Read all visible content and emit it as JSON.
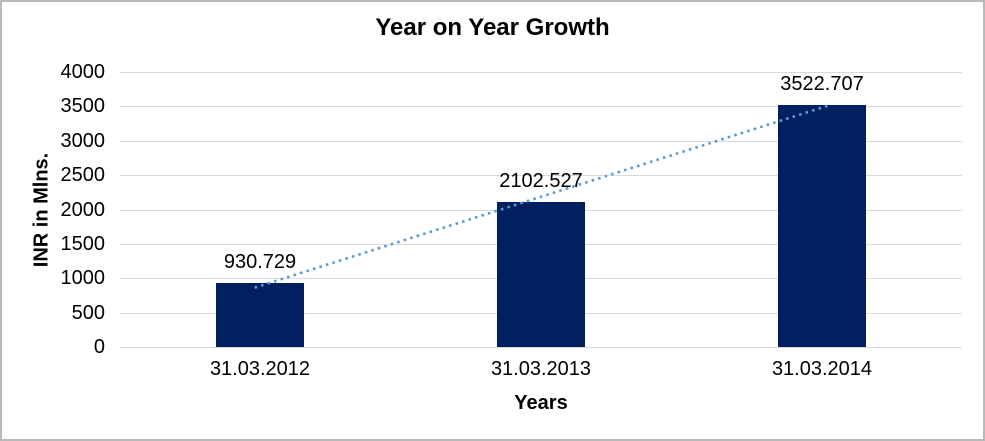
{
  "frame": {
    "background": "#ffffff",
    "border_color": "#b9b9b9"
  },
  "chart_data": {
    "type": "bar",
    "title": "Year on Year Growth",
    "xlabel": "Years",
    "ylabel": "INR in Mlns.",
    "categories": [
      "31.03.2012",
      "31.03.2013",
      "31.03.2014"
    ],
    "values": [
      930.729,
      2102.527,
      3522.707
    ],
    "data_labels": [
      "930.729",
      "2102.527",
      "3522.707"
    ],
    "ylim": [
      0,
      4000
    ],
    "yticks": [
      0,
      500,
      1000,
      1500,
      2000,
      2500,
      3000,
      3500,
      4000
    ],
    "grid": true,
    "legend_position": "none",
    "bar_color": "#002060",
    "gridline_color": "#d9d9d9",
    "text_color": "#000000",
    "trendline": {
      "type": "linear",
      "style": "dotted",
      "color": "#5b9bd5"
    }
  }
}
